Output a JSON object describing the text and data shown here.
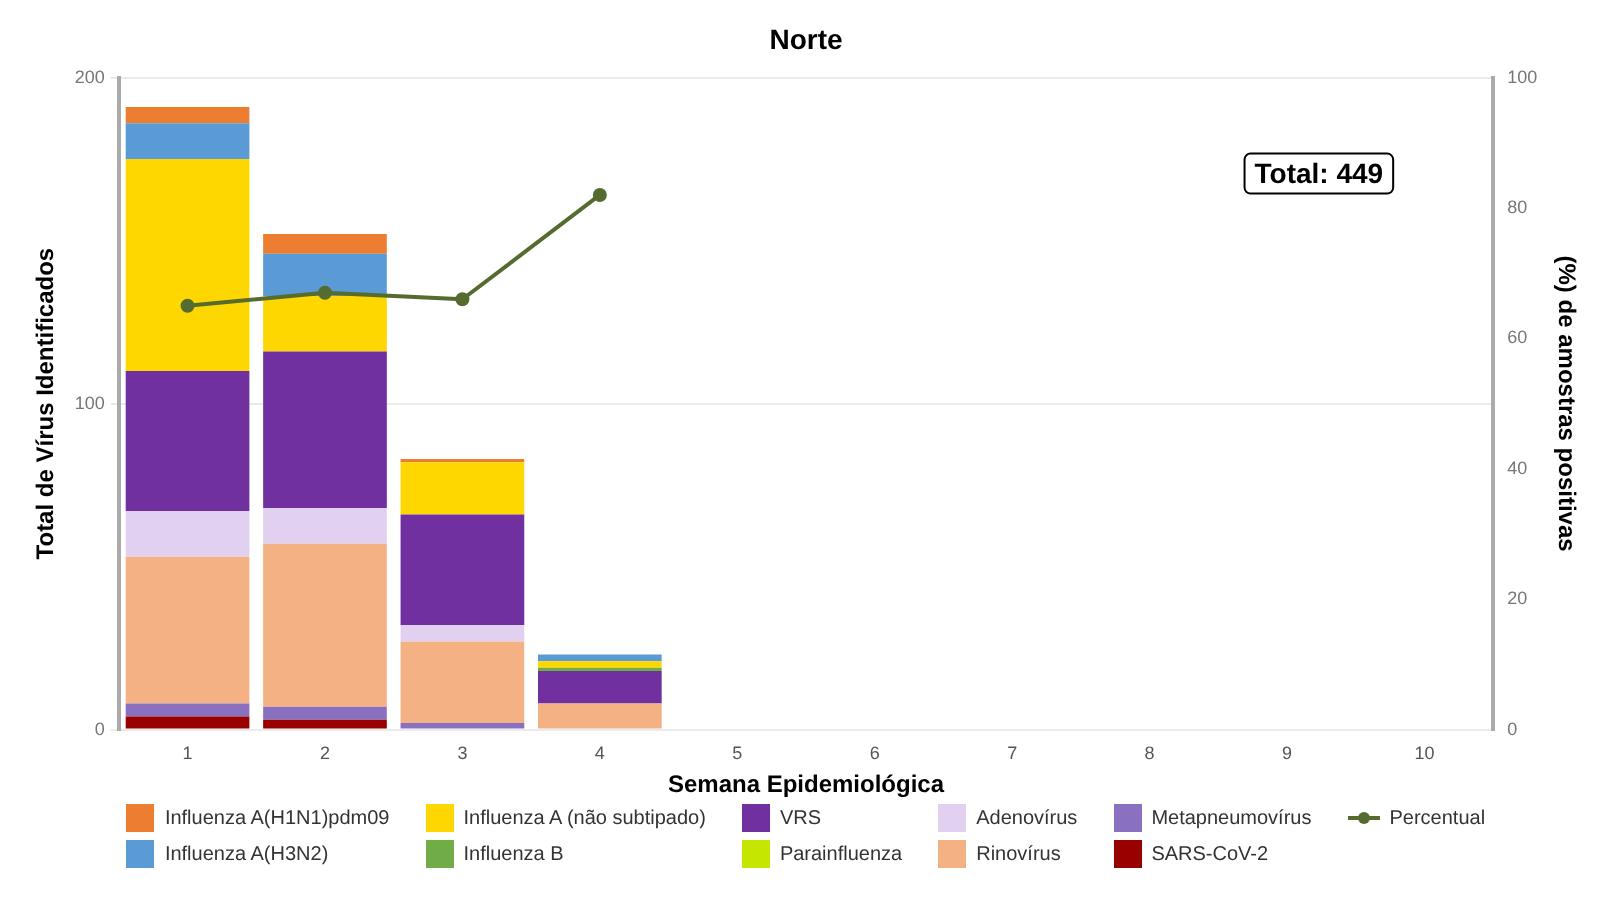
{
  "chart_data": {
    "type": "bar",
    "title": "Norte",
    "xlabel": "Semana Epidemiológica",
    "ylabel": "Total de Vírus Identificados",
    "y2label": "(%) de amostras positivas",
    "categories": [
      "1",
      "2",
      "3",
      "4",
      "5",
      "6",
      "7",
      "8",
      "9",
      "10"
    ],
    "stacked": true,
    "series": [
      {
        "name": "SARS-CoV-2",
        "color": "#990000",
        "values": [
          4,
          3,
          0,
          0,
          0,
          0,
          0,
          0,
          0,
          0
        ]
      },
      {
        "name": "Metapneumovírus",
        "color": "#8a70c0",
        "values": [
          4,
          4,
          2,
          0,
          0,
          0,
          0,
          0,
          0,
          0
        ]
      },
      {
        "name": "Rinovírus",
        "color": "#f4b183",
        "values": [
          45,
          50,
          25,
          8,
          0,
          0,
          0,
          0,
          0,
          0
        ]
      },
      {
        "name": "Adenovírus",
        "color": "#e2d0f0",
        "values": [
          14,
          11,
          5,
          0,
          0,
          0,
          0,
          0,
          0,
          0
        ]
      },
      {
        "name": "Parainfluenza",
        "color": "#c5e600",
        "values": [
          0,
          0,
          0,
          0,
          0,
          0,
          0,
          0,
          0,
          0
        ]
      },
      {
        "name": "VRS",
        "color": "#7030a0",
        "values": [
          43,
          48,
          34,
          10,
          0,
          0,
          0,
          0,
          0,
          0
        ]
      },
      {
        "name": "Influenza B",
        "color": "#70ad47",
        "values": [
          0,
          0,
          0,
          1,
          0,
          0,
          0,
          0,
          0,
          0
        ]
      },
      {
        "name": "Influenza A (não subtipado)",
        "color": "#ffd700",
        "values": [
          65,
          17,
          16,
          2,
          0,
          0,
          0,
          0,
          0,
          0
        ]
      },
      {
        "name": "Influenza A(H3N2)",
        "color": "#5b9bd5",
        "values": [
          11,
          13,
          0,
          2,
          0,
          0,
          0,
          0,
          0,
          0
        ]
      },
      {
        "name": "Influenza A(H1N1)pdm09",
        "color": "#ed7d31",
        "values": [
          5,
          6,
          1,
          0,
          0,
          0,
          0,
          0,
          0,
          0
        ]
      },
      {
        "name": "Percentual",
        "type": "line",
        "axis": "y2",
        "color": "#556b2f",
        "values": [
          65,
          67,
          66,
          82,
          null,
          null,
          null,
          null,
          null,
          null
        ]
      }
    ],
    "ylim": [
      0,
      200
    ],
    "yticks": [
      0,
      100,
      200
    ],
    "y2lim": [
      0,
      100
    ],
    "y2ticks": [
      0,
      20,
      40,
      60,
      80,
      100
    ],
    "marker": "circle",
    "grid": "y",
    "legend": "bottom",
    "annotations": [
      "Total: 449"
    ]
  }
}
